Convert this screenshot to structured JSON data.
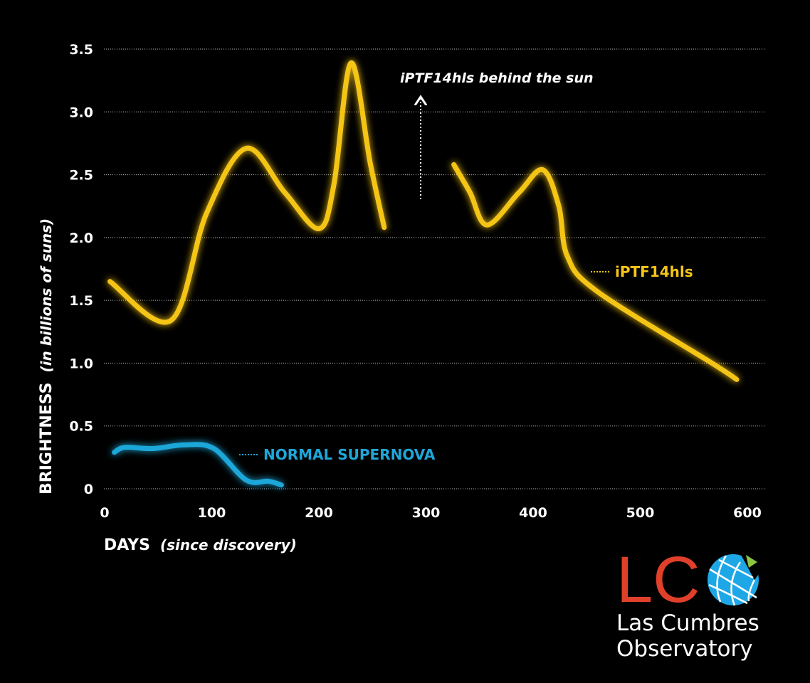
{
  "chart_data": {
    "type": "line",
    "xlabel": "DAYS",
    "xlabel_note": "(since discovery)",
    "ylabel": "BRIGHTNESS",
    "ylabel_note": "(in billions of suns)",
    "xlim": [
      0,
      600
    ],
    "ylim": [
      0,
      3.5
    ],
    "xticks": [
      "0",
      "100",
      "200",
      "300",
      "400",
      "500",
      "600"
    ],
    "yticks": [
      "0",
      "0.5",
      "1.0",
      "1.5",
      "2.0",
      "2.5",
      "3.0",
      "3.5"
    ],
    "grid": "horizontal dotted",
    "series": [
      {
        "name": "iPTF14hls",
        "color": "#f5c518",
        "segments": [
          [
            [
              5,
              1.65
            ],
            [
              62,
              1.34
            ],
            [
              95,
              2.19
            ],
            [
              132,
              2.71
            ],
            [
              168,
              2.36
            ],
            [
              200,
              2.07
            ],
            [
              214,
              2.42
            ],
            [
              230,
              3.39
            ],
            [
              248,
              2.59
            ],
            [
              261,
              2.08
            ]
          ],
          [
            [
              326,
              2.58
            ],
            [
              341,
              2.36
            ],
            [
              357,
              2.1
            ],
            [
              387,
              2.36
            ],
            [
              409,
              2.54
            ],
            [
              424,
              2.25
            ],
            [
              432,
              1.85
            ],
            [
              460,
              1.57
            ],
            [
              567,
              1.0
            ],
            [
              590,
              0.87
            ]
          ]
        ]
      },
      {
        "name": "NORMAL SUPERNOVA",
        "color": "#1ea7d9",
        "segments": [
          [
            [
              9,
              0.29
            ],
            [
              19,
              0.33
            ],
            [
              45,
              0.32
            ],
            [
              75,
              0.35
            ],
            [
              102,
              0.32
            ],
            [
              132,
              0.07
            ],
            [
              153,
              0.06
            ],
            [
              165,
              0.03
            ]
          ]
        ]
      }
    ],
    "annotations": [
      {
        "text": "iPTF14hls behind the sun",
        "x": 297,
        "y_from": 2.3,
        "y_to": 3.0
      }
    ]
  },
  "logo": {
    "letters": "LC",
    "line1": "Las Cumbres",
    "line2": "Observatory",
    "colors": {
      "letters": "#e0402a",
      "globe": "#1ea7e6",
      "wedge": "#8cc63f"
    }
  }
}
